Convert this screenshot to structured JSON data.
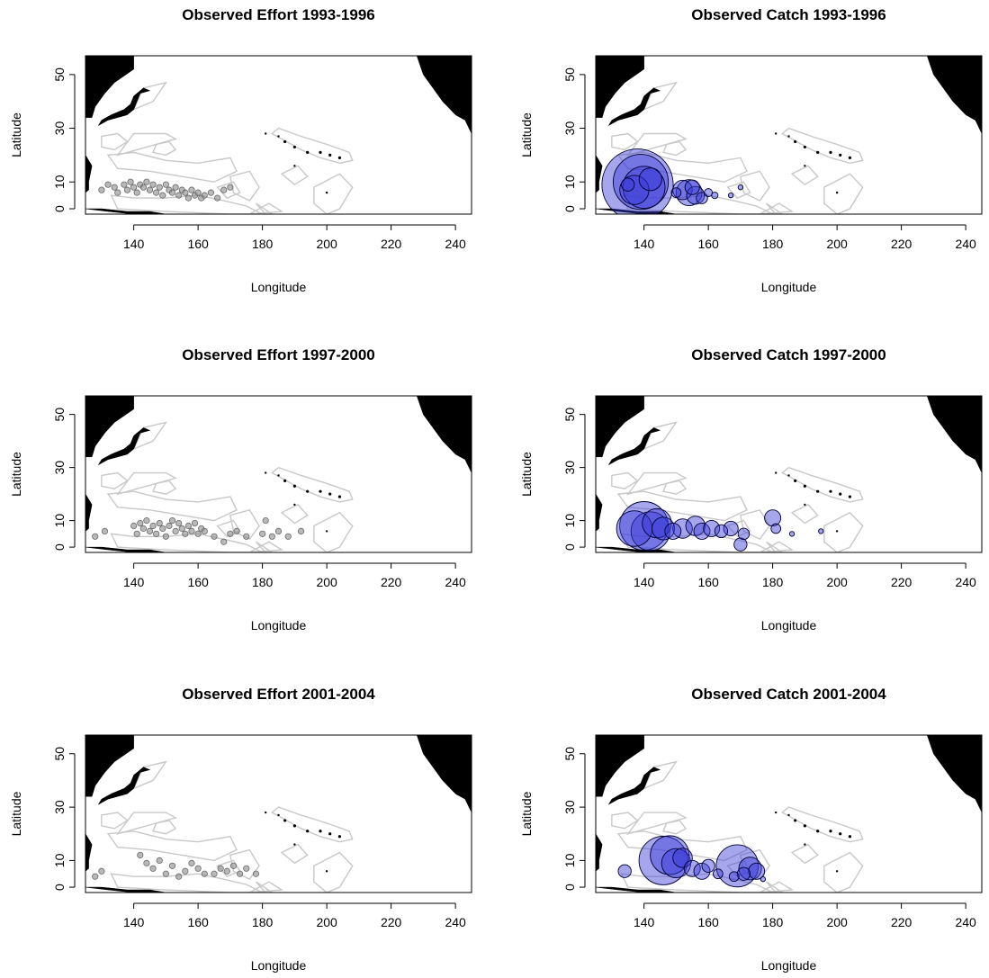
{
  "figure": {
    "x_ticks": [
      "140",
      "160",
      "180",
      "200",
      "220",
      "240"
    ],
    "y_ticks": [
      "0",
      "10",
      "30",
      "50"
    ],
    "xlabel": "Longitude",
    "ylabel": "Latitude",
    "colors": {
      "land": "#000000",
      "eez_outline": "#c8c8c8",
      "effort_marker": "#8a8a8a",
      "catch_fill": "#3a3ad8",
      "catch_stroke": "#000033"
    }
  },
  "chart_data": [
    {
      "type": "scatter",
      "title": "Observed Effort  1993-1996",
      "xlabel": "Longitude",
      "ylabel": "Latitude",
      "xlim": [
        125,
        245
      ],
      "ylim": [
        -2,
        57
      ],
      "series": [
        {
          "x": [
            130,
            132,
            134,
            135,
            137,
            138,
            139,
            140,
            141,
            142,
            143,
            144,
            145,
            146,
            147,
            148,
            149,
            150,
            151,
            152,
            153,
            154,
            155,
            156,
            157,
            158,
            159,
            160,
            161,
            162,
            164,
            166,
            168,
            170
          ],
          "y": [
            7,
            9,
            8,
            6,
            9,
            7,
            10,
            8,
            6,
            9,
            8,
            10,
            7,
            9,
            6,
            8,
            5,
            9,
            7,
            6,
            8,
            5,
            7,
            6,
            4,
            7,
            5,
            6,
            4,
            5,
            6,
            4,
            7,
            8
          ],
          "size": [
            1,
            1,
            1,
            1,
            1,
            1,
            1,
            1,
            1,
            1,
            1,
            1,
            1,
            1,
            1,
            1,
            1,
            1,
            1,
            1,
            1,
            1,
            1,
            1,
            1,
            1,
            1,
            1,
            1,
            1,
            1,
            1,
            1,
            1
          ]
        }
      ]
    },
    {
      "type": "scatter",
      "title": "Observed  Catch 1993-1996",
      "xlabel": "Longitude",
      "ylabel": "Latitude",
      "xlim": [
        125,
        245
      ],
      "ylim": [
        -2,
        57
      ],
      "series": [
        {
          "x": [
            138,
            139,
            140,
            137,
            142,
            135,
            152,
            154,
            156,
            155,
            158,
            150,
            160,
            162,
            167,
            170
          ],
          "y": [
            9,
            10,
            8,
            7,
            11,
            9,
            7,
            6,
            5,
            8,
            4,
            6,
            6,
            5,
            5,
            8
          ],
          "size": [
            44,
            34,
            26,
            18,
            14,
            8,
            12,
            16,
            11,
            9,
            7,
            6,
            5,
            4,
            3,
            3
          ]
        }
      ]
    },
    {
      "type": "scatter",
      "title": "Observed Effort  1997-2000",
      "xlabel": "Longitude",
      "ylabel": "Latitude",
      "xlim": [
        125,
        245
      ],
      "ylim": [
        -2,
        57
      ],
      "series": [
        {
          "x": [
            128,
            131,
            140,
            141,
            142,
            143,
            144,
            145,
            146,
            147,
            148,
            149,
            150,
            151,
            152,
            153,
            154,
            155,
            156,
            157,
            158,
            159,
            160,
            161,
            162,
            165,
            168,
            170,
            172,
            175,
            180,
            181,
            183,
            185,
            188,
            192
          ],
          "y": [
            4,
            6,
            8,
            5,
            9,
            7,
            10,
            6,
            8,
            5,
            9,
            7,
            4,
            8,
            10,
            6,
            9,
            7,
            5,
            8,
            6,
            9,
            5,
            7,
            6,
            4,
            2,
            5,
            6,
            4,
            5,
            10,
            4,
            6,
            4,
            6
          ],
          "size": [
            1,
            1,
            1,
            1,
            1,
            1,
            1,
            1,
            1,
            1,
            1,
            1,
            1,
            1,
            1,
            1,
            1,
            1,
            1,
            1,
            1,
            1,
            1,
            1,
            1,
            1,
            1,
            1,
            1,
            1,
            1,
            1,
            1,
            1,
            1,
            1
          ]
        }
      ]
    },
    {
      "type": "scatter",
      "title": "Observed  Catch 1997-2000",
      "xlabel": "Longitude",
      "ylabel": "Latitude",
      "xlim": [
        125,
        245
      ],
      "ylim": [
        -2,
        57
      ],
      "series": [
        {
          "x": [
            137,
            140,
            142,
            144,
            146,
            149,
            152,
            156,
            158,
            161,
            164,
            167,
            170,
            171,
            180,
            181,
            186,
            195
          ],
          "y": [
            7,
            8,
            6,
            9,
            7,
            6,
            7,
            8,
            6,
            7,
            6,
            7,
            1,
            5,
            11,
            7,
            5,
            6
          ],
          "size": [
            22,
            30,
            24,
            18,
            14,
            10,
            12,
            12,
            10,
            10,
            8,
            9,
            8,
            7,
            10,
            6,
            3,
            3
          ]
        }
      ]
    },
    {
      "type": "scatter",
      "title": "Observed Effort  2001-2004",
      "xlabel": "Longitude",
      "ylabel": "Latitude",
      "xlim": [
        125,
        245
      ],
      "ylim": [
        -2,
        57
      ],
      "series": [
        {
          "x": [
            128,
            130,
            142,
            144,
            146,
            148,
            150,
            152,
            154,
            156,
            158,
            160,
            162,
            165,
            167,
            169,
            171,
            173,
            175,
            178
          ],
          "y": [
            4,
            6,
            12,
            9,
            7,
            10,
            5,
            8,
            4,
            6,
            9,
            7,
            5,
            5,
            7,
            6,
            8,
            5,
            7,
            5
          ],
          "size": [
            1,
            1,
            1,
            1,
            1,
            1,
            1,
            1,
            1,
            1,
            1,
            1,
            1,
            1,
            1,
            1,
            1,
            1,
            1,
            1
          ]
        }
      ]
    },
    {
      "type": "scatter",
      "title": "Observed  Catch 2001-2004",
      "xlabel": "Longitude",
      "ylabel": "Latitude",
      "xlim": [
        125,
        245
      ],
      "ylim": [
        -2,
        57
      ],
      "series": [
        {
          "x": [
            134,
            146,
            148,
            150,
            152,
            155,
            158,
            160,
            163,
            169,
            173,
            175,
            171,
            168,
            177
          ],
          "y": [
            6,
            10,
            12,
            9,
            11,
            7,
            6,
            8,
            5,
            8,
            7,
            6,
            5,
            4,
            3
          ],
          "size": [
            8,
            30,
            24,
            18,
            12,
            10,
            10,
            8,
            6,
            26,
            14,
            10,
            8,
            6,
            3
          ]
        }
      ]
    }
  ]
}
